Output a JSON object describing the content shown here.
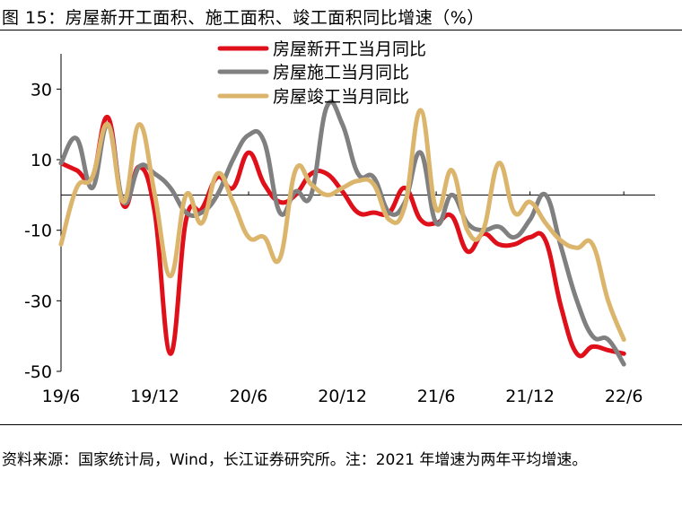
{
  "title": "图 15：房屋新开工面积、施工面积、竣工面积同比增速（%）",
  "source": "资料来源：国家统计局，Wind，长江证券研究所。注：2021 年增速为两年平均增速。",
  "chart_data": {
    "type": "line",
    "ylim": [
      -50,
      40
    ],
    "xlim": [
      0,
      38
    ],
    "yticks": [
      -50,
      -30,
      -10,
      10,
      30
    ],
    "xtick_positions": [
      0,
      6,
      12,
      18,
      24,
      30,
      36
    ],
    "xtick_labels": [
      "19/6",
      "19/12",
      "20/6",
      "20/12",
      "21/6",
      "21/12",
      "22/6"
    ],
    "legend_position": "top-center",
    "series": [
      {
        "name": "房屋新开工当月同比",
        "color": "#e0101b",
        "x": [
          0,
          1,
          2,
          3,
          4,
          5,
          6,
          7,
          8,
          9,
          10,
          11,
          12,
          13,
          14,
          15,
          16,
          17,
          18,
          19,
          20,
          21,
          22,
          23,
          24,
          25,
          26,
          27,
          28,
          29,
          30,
          31,
          32,
          33,
          34,
          35,
          36
        ],
        "values": [
          9,
          7,
          5,
          22,
          -3,
          8,
          -5,
          -45,
          -7,
          -4,
          5,
          2,
          12,
          3,
          -2,
          0,
          6,
          6,
          1,
          -5,
          -5,
          -5,
          2,
          -7,
          -8,
          -6,
          -16,
          -11,
          -14,
          -14,
          -12,
          -13,
          -32,
          -45,
          -43,
          -44,
          -45
        ]
      },
      {
        "name": "房屋施工当月同比",
        "color": "#808080",
        "x": [
          0,
          1,
          2,
          3,
          4,
          5,
          6,
          7,
          8,
          9,
          10,
          11,
          12,
          13,
          14,
          15,
          16,
          17,
          18,
          19,
          20,
          21,
          22,
          23,
          24,
          25,
          26,
          27,
          28,
          29,
          30,
          31,
          32,
          33,
          34,
          35,
          36
        ],
        "values": [
          9,
          16,
          2,
          20,
          -2,
          8,
          6,
          2,
          -5,
          -5,
          0,
          10,
          17,
          15,
          -5,
          1,
          0,
          25,
          20,
          6,
          5,
          -5,
          -2,
          12,
          -8,
          0,
          -8,
          -10,
          -9,
          -12,
          -7,
          0,
          -15,
          -30,
          -40,
          -41,
          -48
        ]
      },
      {
        "name": "房屋竣工当月同比",
        "color": "#dcb56d",
        "x": [
          0,
          1,
          2,
          3,
          4,
          5,
          6,
          7,
          8,
          9,
          10,
          11,
          12,
          13,
          14,
          15,
          16,
          17,
          18,
          19,
          20,
          21,
          22,
          23,
          24,
          25,
          26,
          27,
          28,
          29,
          30,
          31,
          32,
          33,
          34,
          35,
          36
        ],
        "values": [
          -14,
          2,
          5,
          20,
          -2,
          20,
          0,
          -23,
          0,
          -8,
          6,
          -2,
          -12,
          -12,
          -18,
          7,
          3,
          0,
          2,
          4,
          3,
          -7,
          -3,
          24,
          -4,
          7,
          -10,
          -10,
          9,
          -5,
          -2,
          -8,
          -13,
          -15,
          -14,
          -30,
          -41
        ]
      }
    ]
  }
}
